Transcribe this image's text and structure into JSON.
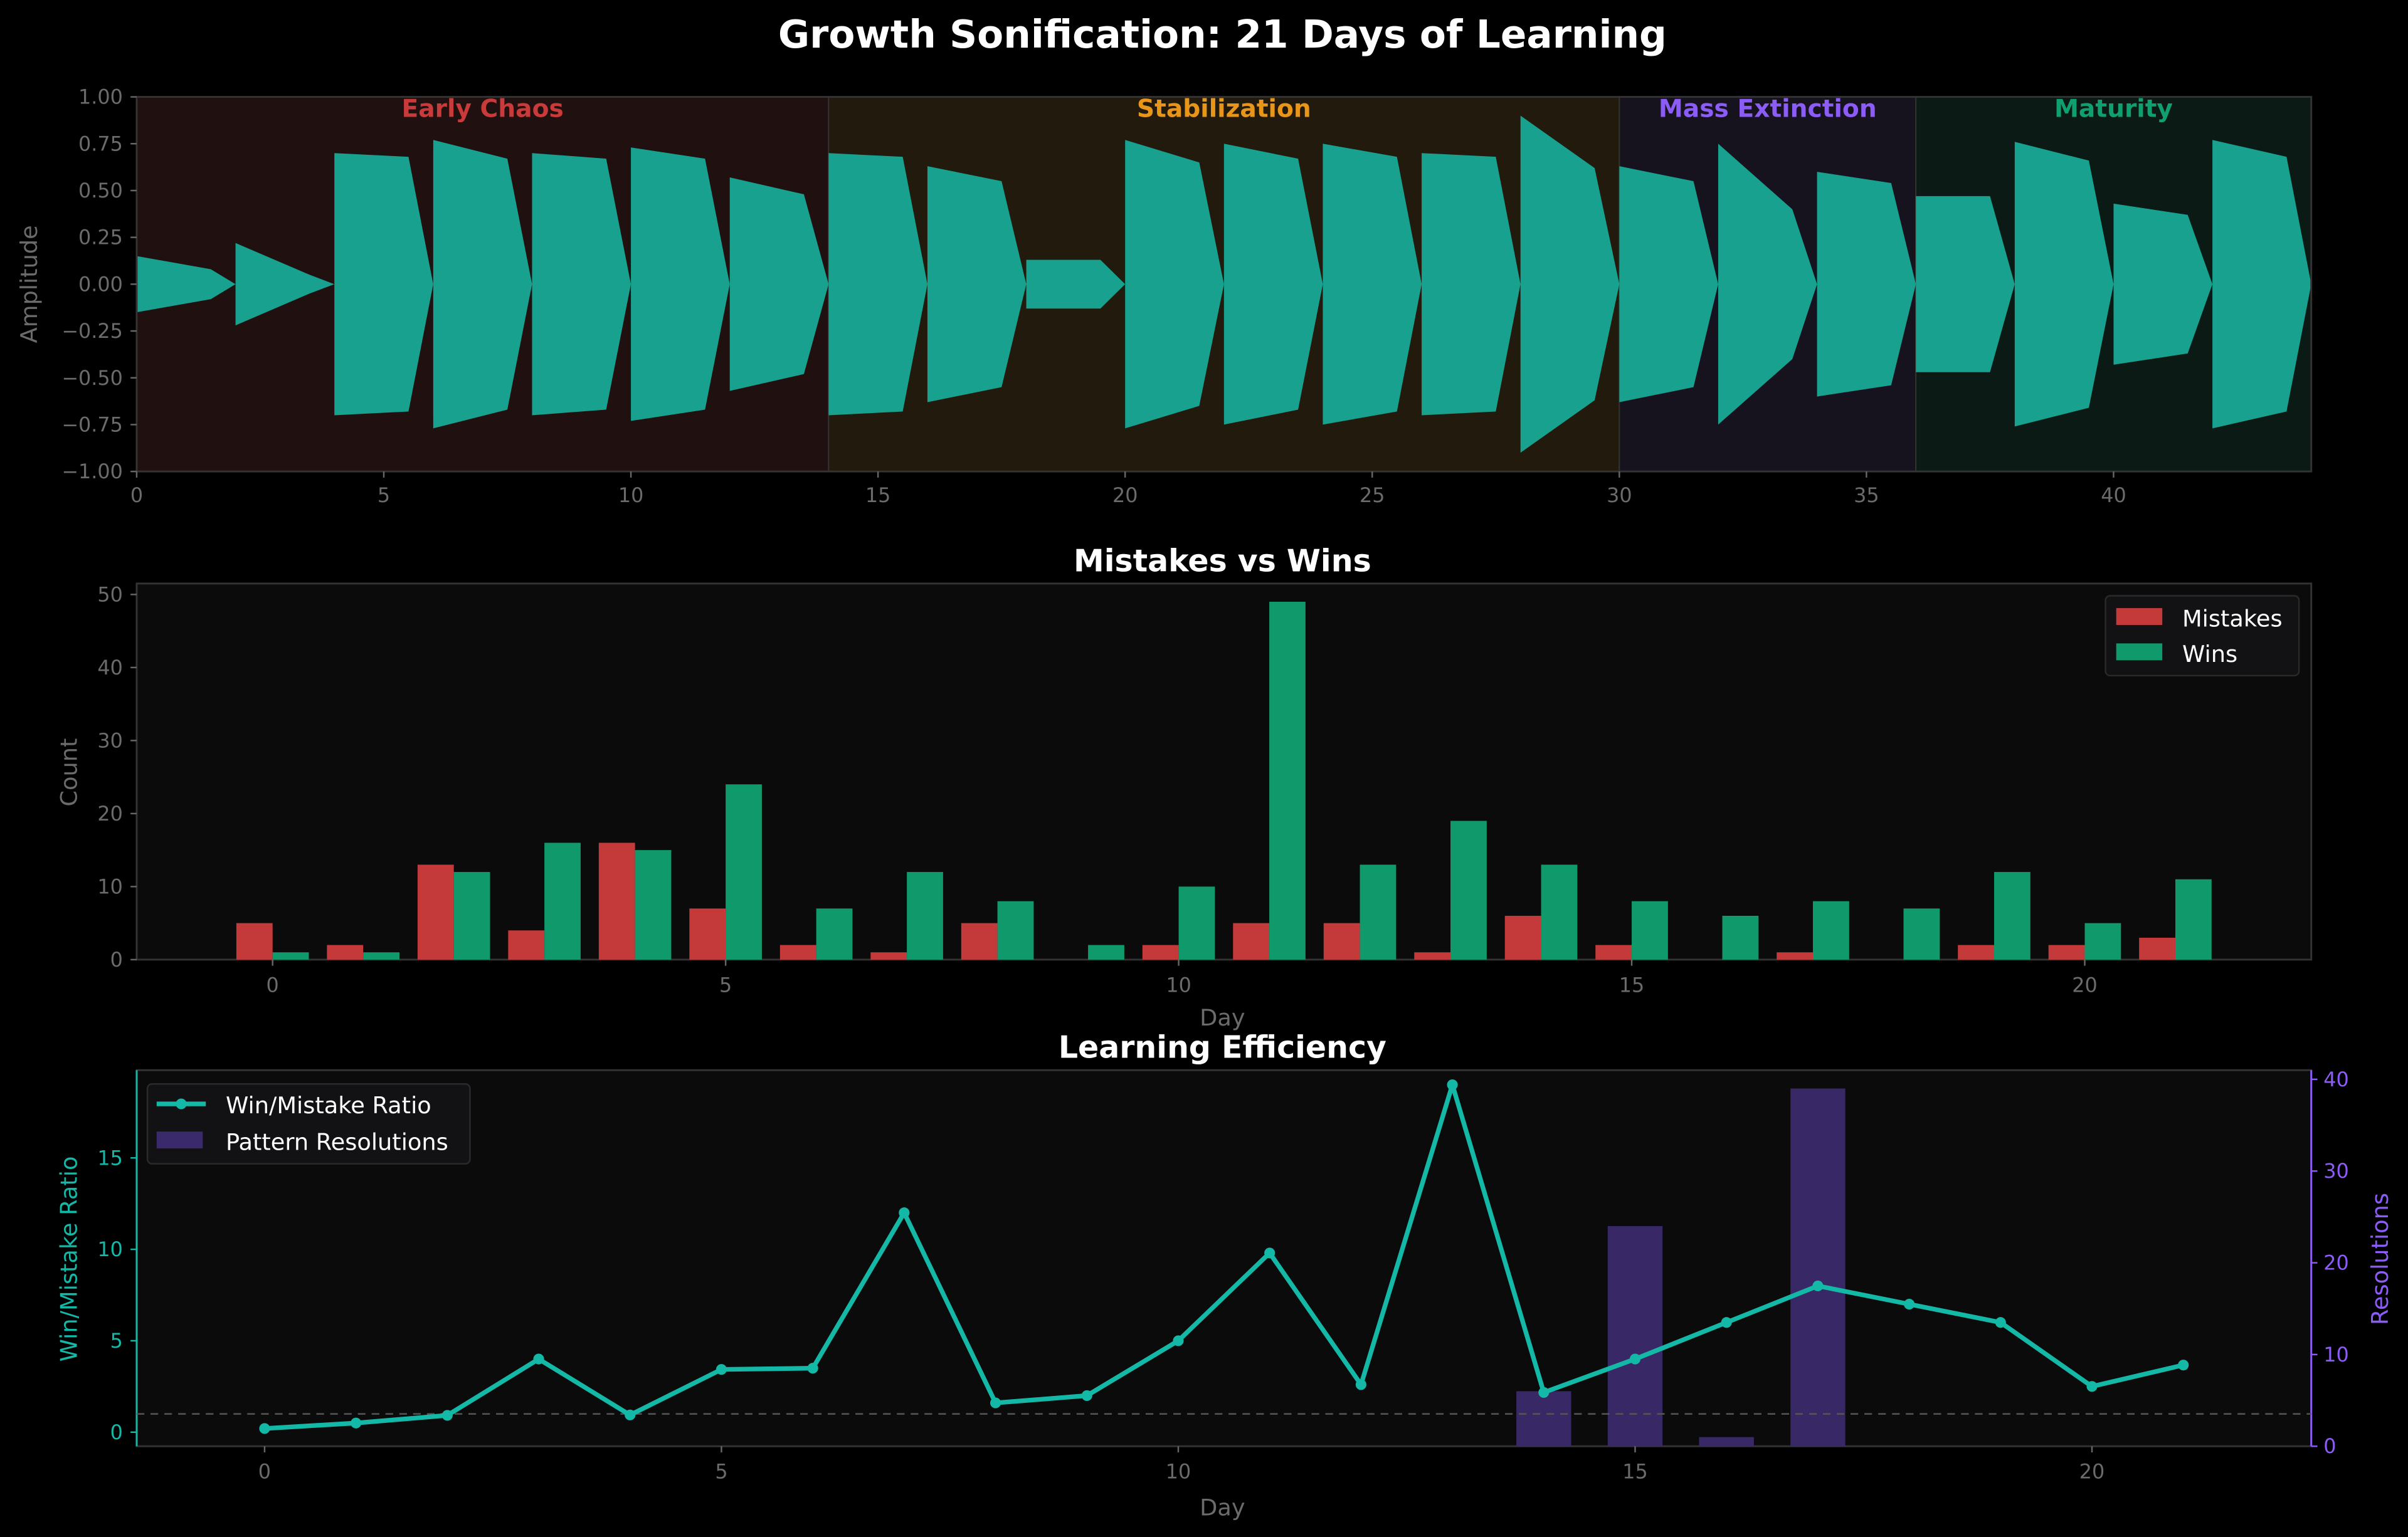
{
  "title": "Growth Sonification: 21 Days of Learning",
  "colors": {
    "background": "#000000",
    "axes_face": "#0b0b0b",
    "waveform": "#17a18e",
    "mistakes": "#c43a3a",
    "wins": "#10996a",
    "ratio": "#14b8a6",
    "resolutions": "#3b2a6b",
    "right_axis": "#8b5cf6",
    "left_axis": "#14b8a6"
  },
  "chart_data": [
    {
      "type": "area",
      "title": "",
      "ylabel": "Amplitude",
      "xlabel": "",
      "xlim": [
        0,
        44
      ],
      "ylim": [
        -1,
        1
      ],
      "xticks": [
        "0",
        "5",
        "10",
        "15",
        "20",
        "25",
        "30",
        "35",
        "40"
      ],
      "yticks": [
        "1.00",
        "0.75",
        "0.50",
        "0.25",
        "0.00",
        "−0.25",
        "−0.50",
        "−0.75",
        "−1.00"
      ],
      "phases": [
        {
          "label": "Early Chaos",
          "start": 0,
          "end": 14,
          "color": "#c93a3a",
          "fill": "#201010"
        },
        {
          "label": "Stabilization",
          "start": 14,
          "end": 30,
          "color": "#e8961a",
          "fill": "#221a0c"
        },
        {
          "label": "Mass Extinction",
          "start": 30,
          "end": 36,
          "color": "#8b5cf6",
          "fill": "#16131f"
        },
        {
          "label": "Maturity",
          "start": 36,
          "end": 44,
          "color": "#10a070",
          "fill": "#0b1a14"
        }
      ],
      "segment_duration": 2,
      "envelope_peak": [
        0.15,
        0.22,
        0.7,
        0.77,
        0.7,
        0.73,
        0.57,
        0.7,
        0.63,
        0.13,
        0.77,
        0.75,
        0.75,
        0.7,
        0.9,
        0.63,
        0.75,
        0.6,
        0.47,
        0.76,
        0.43,
        0.77
      ],
      "envelope_sustain": [
        0.08,
        0.05,
        0.68,
        0.67,
        0.67,
        0.67,
        0.48,
        0.68,
        0.55,
        0.13,
        0.65,
        0.67,
        0.68,
        0.68,
        0.62,
        0.55,
        0.4,
        0.54,
        0.47,
        0.66,
        0.37,
        0.68
      ]
    },
    {
      "type": "bar",
      "title": "Mistakes vs Wins",
      "xlabel": "Day",
      "ylabel": "Count",
      "xlim": [
        -1.5,
        22.5
      ],
      "ylim": [
        0,
        51.5
      ],
      "xticks": [
        "0",
        "5",
        "10",
        "15",
        "20"
      ],
      "yticks": [
        "0",
        "10",
        "20",
        "30",
        "40",
        "50"
      ],
      "legend": "top-right",
      "categories": [
        0,
        1,
        2,
        3,
        4,
        5,
        6,
        7,
        8,
        9,
        10,
        11,
        12,
        13,
        14,
        15,
        16,
        17,
        18,
        19,
        20,
        21
      ],
      "series": [
        {
          "name": "Mistakes",
          "values": [
            5,
            2,
            13,
            4,
            16,
            7,
            2,
            1,
            5,
            0,
            2,
            5,
            5,
            1,
            6,
            2,
            0,
            1,
            0,
            2,
            2,
            3
          ]
        },
        {
          "name": "Wins",
          "values": [
            1,
            1,
            12,
            16,
            15,
            24,
            7,
            12,
            8,
            2,
            10,
            49,
            13,
            19,
            13,
            8,
            6,
            8,
            7,
            12,
            5,
            11
          ]
        }
      ]
    },
    {
      "type": "line",
      "title": "Learning Efficiency",
      "xlabel": "Day",
      "ylabel": "Win/Mistake Ratio",
      "ylabel_right": "Resolutions",
      "xlim": [
        -1.4,
        22.4
      ],
      "ylim": [
        -0.77,
        19.8
      ],
      "ylim_right": [
        0,
        41
      ],
      "xticks": [
        "0",
        "5",
        "10",
        "15",
        "20"
      ],
      "yticks": [
        "0",
        "5",
        "10",
        "15"
      ],
      "yticks_right": [
        "0",
        "10",
        "20",
        "30",
        "40"
      ],
      "legend": "top-left",
      "reference_line": 1,
      "x": [
        0,
        1,
        2,
        3,
        4,
        5,
        6,
        7,
        8,
        9,
        10,
        11,
        12,
        13,
        14,
        15,
        16,
        17,
        18,
        19,
        20,
        21
      ],
      "series": [
        {
          "name": "Win/Mistake Ratio",
          "values": [
            0.2,
            0.5,
            0.92,
            4.0,
            0.94,
            3.43,
            3.5,
            12.0,
            1.6,
            2.0,
            5.0,
            9.8,
            2.6,
            19.0,
            2.17,
            4.0,
            6.0,
            8.0,
            7.0,
            6.0,
            2.5,
            3.67
          ]
        }
      ],
      "bars": {
        "name": "Pattern Resolutions",
        "x": [
          14,
          15,
          16,
          17
        ],
        "values": [
          6,
          24,
          1,
          39
        ]
      }
    }
  ]
}
